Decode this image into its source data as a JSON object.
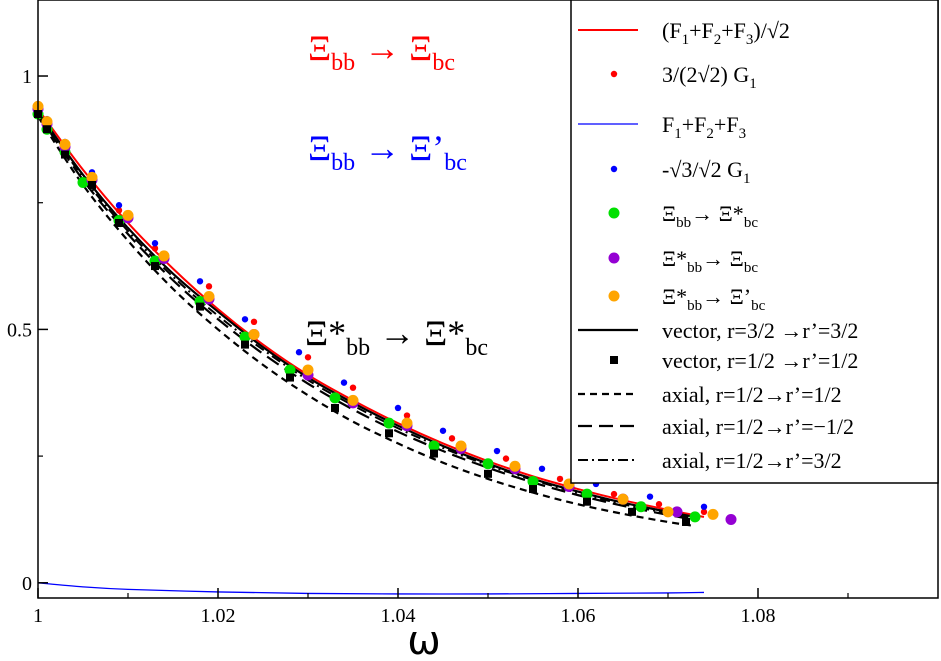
{
  "chart_data": {
    "type": "line",
    "title": "",
    "xlabel": "ω",
    "ylabel": "",
    "xlim": [
      1.0,
      1.1
    ],
    "ylim": [
      -0.03,
      1.15
    ],
    "x_ticks": [
      1,
      1.02,
      1.04,
      1.06,
      1.08
    ],
    "x_tick_labels": [
      "1",
      "1.02",
      "1.04",
      "1.06",
      "1.08"
    ],
    "y_ticks": [
      0,
      0.5,
      1
    ],
    "y_tick_labels": [
      "0",
      "0.5",
      "1"
    ],
    "legend_position": "top-right",
    "annotations": [
      {
        "id": "a1",
        "color": "#ff0000",
        "from_main": "Ξ",
        "from_sub": "bb",
        "to_main": "Ξ",
        "to_sub": "bc",
        "arrow": "→"
      },
      {
        "id": "a2",
        "color": "#0000ff",
        "from_main": "Ξ",
        "from_sub": "bb",
        "to_main": "Ξ’",
        "to_sub": "bc",
        "arrow": "→"
      },
      {
        "id": "a3",
        "color": "#000000",
        "from_main": "Ξ*",
        "from_sub": "bb",
        "to_main": "Ξ*",
        "to_sub": "bc",
        "arrow": "→"
      }
    ],
    "series": [
      {
        "name": "(F1+F2+F3)/√2",
        "label_parts": [
          [
            "(F",
            ""
          ],
          [
            "1",
            "sub"
          ],
          [
            "+F",
            ""
          ],
          [
            "2",
            "sub"
          ],
          [
            "+F",
            ""
          ],
          [
            "3",
            "sub"
          ],
          [
            ")/√2",
            ""
          ]
        ],
        "style": "line",
        "color": "#ff0000",
        "dash": "solid",
        "x": [
          1.0,
          1.005,
          1.01,
          1.015,
          1.02,
          1.025,
          1.03,
          1.035,
          1.04,
          1.045,
          1.05,
          1.055,
          1.06,
          1.065,
          1.07,
          1.074
        ],
        "y": [
          0.935,
          0.815,
          0.71,
          0.62,
          0.54,
          0.47,
          0.41,
          0.36,
          0.315,
          0.275,
          0.24,
          0.21,
          0.185,
          0.163,
          0.144,
          0.13
        ]
      },
      {
        "name": "3/(2√2) G1",
        "label_parts": [
          [
            "3/(2√2) G",
            ""
          ],
          [
            "1",
            "sub"
          ]
        ],
        "style": "dots",
        "color": "#ff0000",
        "x": [
          1.0,
          1.001,
          1.003,
          1.006,
          1.009,
          1.013,
          1.019,
          1.024,
          1.03,
          1.035,
          1.041,
          1.046,
          1.052,
          1.058,
          1.064,
          1.069,
          1.074
        ],
        "y": [
          0.94,
          0.91,
          0.86,
          0.8,
          0.735,
          0.66,
          0.585,
          0.515,
          0.445,
          0.385,
          0.33,
          0.285,
          0.245,
          0.205,
          0.175,
          0.155,
          0.14
        ]
      },
      {
        "name": "F1+F2+F3",
        "label_parts": [
          [
            "F",
            ""
          ],
          [
            "1",
            "sub"
          ],
          [
            "+F",
            ""
          ],
          [
            "2",
            "sub"
          ],
          [
            "+F",
            ""
          ],
          [
            "3",
            "sub"
          ]
        ],
        "style": "line",
        "color": "#0000ff",
        "dash": "solid",
        "width": 1.3,
        "x": [
          1.0,
          1.005,
          1.01,
          1.02,
          1.03,
          1.04,
          1.05,
          1.06,
          1.07,
          1.074
        ],
        "y": [
          0.0,
          -0.008,
          -0.013,
          -0.018,
          -0.021,
          -0.022,
          -0.022,
          -0.021,
          -0.02,
          -0.019
        ]
      },
      {
        "name": "-√3/√2 G1",
        "label_parts": [
          [
            "-√3/√2 G",
            ""
          ],
          [
            "1",
            "sub"
          ]
        ],
        "style": "dots",
        "color": "#0000ff",
        "x": [
          1.0,
          1.001,
          1.003,
          1.006,
          1.009,
          1.013,
          1.018,
          1.023,
          1.029,
          1.034,
          1.04,
          1.045,
          1.051,
          1.056,
          1.062,
          1.068,
          1.074
        ],
        "y": [
          0.945,
          0.915,
          0.87,
          0.81,
          0.745,
          0.67,
          0.595,
          0.52,
          0.455,
          0.395,
          0.345,
          0.3,
          0.26,
          0.225,
          0.195,
          0.17,
          0.15
        ]
      },
      {
        "name": "Ξbb→Ξ*bc",
        "label_parts": [
          [
            "Ξ",
            ""
          ],
          [
            "bb",
            "sub"
          ],
          [
            "→ Ξ*",
            ""
          ],
          [
            "bc",
            "sub"
          ]
        ],
        "style": "circles",
        "color": "#00e000",
        "x": [
          1.0,
          1.001,
          1.003,
          1.005,
          1.009,
          1.013,
          1.018,
          1.023,
          1.028,
          1.033,
          1.039,
          1.044,
          1.05,
          1.055,
          1.061,
          1.067,
          1.073
        ],
        "y": [
          0.925,
          0.895,
          0.85,
          0.79,
          0.715,
          0.635,
          0.555,
          0.485,
          0.42,
          0.365,
          0.315,
          0.27,
          0.235,
          0.2,
          0.175,
          0.15,
          0.13
        ]
      },
      {
        "name": "Ξ*bb→Ξbc",
        "label_parts": [
          [
            "Ξ*",
            ""
          ],
          [
            "bb",
            "sub"
          ],
          [
            "→ Ξ",
            ""
          ],
          [
            "bc",
            "sub"
          ]
        ],
        "style": "circles",
        "color": "#9400d3",
        "x": [
          1.0,
          1.001,
          1.003,
          1.006,
          1.01,
          1.014,
          1.019,
          1.024,
          1.03,
          1.035,
          1.041,
          1.047,
          1.053,
          1.059,
          1.065,
          1.071,
          1.077
        ],
        "y": [
          0.935,
          0.905,
          0.86,
          0.795,
          0.72,
          0.64,
          0.56,
          0.49,
          0.41,
          0.355,
          0.31,
          0.265,
          0.225,
          0.19,
          0.165,
          0.14,
          0.125
        ]
      },
      {
        "name": "Ξ*bb→Ξ’bc",
        "label_parts": [
          [
            "Ξ*",
            ""
          ],
          [
            "bb",
            "sub"
          ],
          [
            "→ Ξ’",
            ""
          ],
          [
            "bc",
            "sub"
          ]
        ],
        "style": "circles",
        "color": "#ffa500",
        "x": [
          1.0,
          1.001,
          1.003,
          1.006,
          1.01,
          1.014,
          1.019,
          1.024,
          1.03,
          1.035,
          1.041,
          1.047,
          1.053,
          1.059,
          1.065,
          1.07,
          1.075
        ],
        "y": [
          0.94,
          0.91,
          0.865,
          0.8,
          0.725,
          0.645,
          0.565,
          0.49,
          0.42,
          0.36,
          0.315,
          0.27,
          0.23,
          0.195,
          0.165,
          0.14,
          0.135
        ]
      },
      {
        "name": "vector, r=3/2 →r’=3/2",
        "label_parts": [
          [
            "vector, r=3/2 →r’=3/2",
            ""
          ]
        ],
        "style": "line",
        "color": "#000000",
        "dash": "solid",
        "width": 2.2,
        "x": [
          1.0,
          1.005,
          1.01,
          1.015,
          1.02,
          1.025,
          1.03,
          1.035,
          1.04,
          1.045,
          1.05,
          1.055,
          1.06,
          1.065,
          1.07,
          1.073
        ],
        "y": [
          0.93,
          0.805,
          0.7,
          0.61,
          0.535,
          0.465,
          0.405,
          0.355,
          0.31,
          0.27,
          0.235,
          0.205,
          0.18,
          0.158,
          0.14,
          0.13
        ]
      },
      {
        "name": "vector, r=1/2 →r’=1/2",
        "label_parts": [
          [
            "vector, r=1/2 →r’=1/2",
            ""
          ]
        ],
        "style": "squares",
        "color": "#000000",
        "x": [
          1.0,
          1.001,
          1.003,
          1.006,
          1.009,
          1.013,
          1.018,
          1.023,
          1.028,
          1.033,
          1.039,
          1.044,
          1.05,
          1.055,
          1.061,
          1.066,
          1.072
        ],
        "y": [
          0.925,
          0.895,
          0.845,
          0.785,
          0.71,
          0.625,
          0.545,
          0.47,
          0.405,
          0.345,
          0.295,
          0.255,
          0.215,
          0.185,
          0.16,
          0.14,
          0.12
        ]
      },
      {
        "name": "axial, r=1/2→r’=1/2",
        "label_parts": [
          [
            "axial, r=1/2→r’=1/2",
            ""
          ]
        ],
        "style": "line",
        "color": "#000000",
        "dash": "7,5",
        "width": 2.2,
        "x": [
          1.0,
          1.005,
          1.01,
          1.015,
          1.02,
          1.025,
          1.03,
          1.035,
          1.04,
          1.045,
          1.05,
          1.055,
          1.06,
          1.065,
          1.07,
          1.073
        ],
        "y": [
          0.92,
          0.785,
          0.675,
          0.58,
          0.5,
          0.43,
          0.37,
          0.318,
          0.275,
          0.237,
          0.205,
          0.178,
          0.155,
          0.136,
          0.12,
          0.112
        ]
      },
      {
        "name": "axial, r=1/2→r’=−1/2",
        "label_parts": [
          [
            "axial, r=1/2→r’=−1/2",
            ""
          ]
        ],
        "style": "line",
        "color": "#000000",
        "dash": "14,7",
        "width": 2.2,
        "x": [
          1.0,
          1.005,
          1.01,
          1.015,
          1.02,
          1.025,
          1.03,
          1.035,
          1.04,
          1.045,
          1.05,
          1.055,
          1.06,
          1.065,
          1.07,
          1.073
        ],
        "y": [
          0.925,
          0.795,
          0.688,
          0.597,
          0.52,
          0.452,
          0.393,
          0.342,
          0.298,
          0.26,
          0.227,
          0.198,
          0.173,
          0.152,
          0.134,
          0.124
        ]
      },
      {
        "name": "axial, r=1/2→r’=3/2",
        "label_parts": [
          [
            "axial, r=1/2→r’=3/2",
            ""
          ]
        ],
        "style": "line",
        "color": "#000000",
        "dash": "10,4,2,4",
        "width": 2.0,
        "x": [
          1.0,
          1.005,
          1.01,
          1.015,
          1.02,
          1.025,
          1.03,
          1.035,
          1.04,
          1.045,
          1.05,
          1.055,
          1.06,
          1.065,
          1.07,
          1.073
        ],
        "y": [
          0.928,
          0.8,
          0.694,
          0.604,
          0.527,
          0.46,
          0.4,
          0.35,
          0.305,
          0.266,
          0.232,
          0.203,
          0.177,
          0.155,
          0.137,
          0.127
        ]
      }
    ]
  }
}
